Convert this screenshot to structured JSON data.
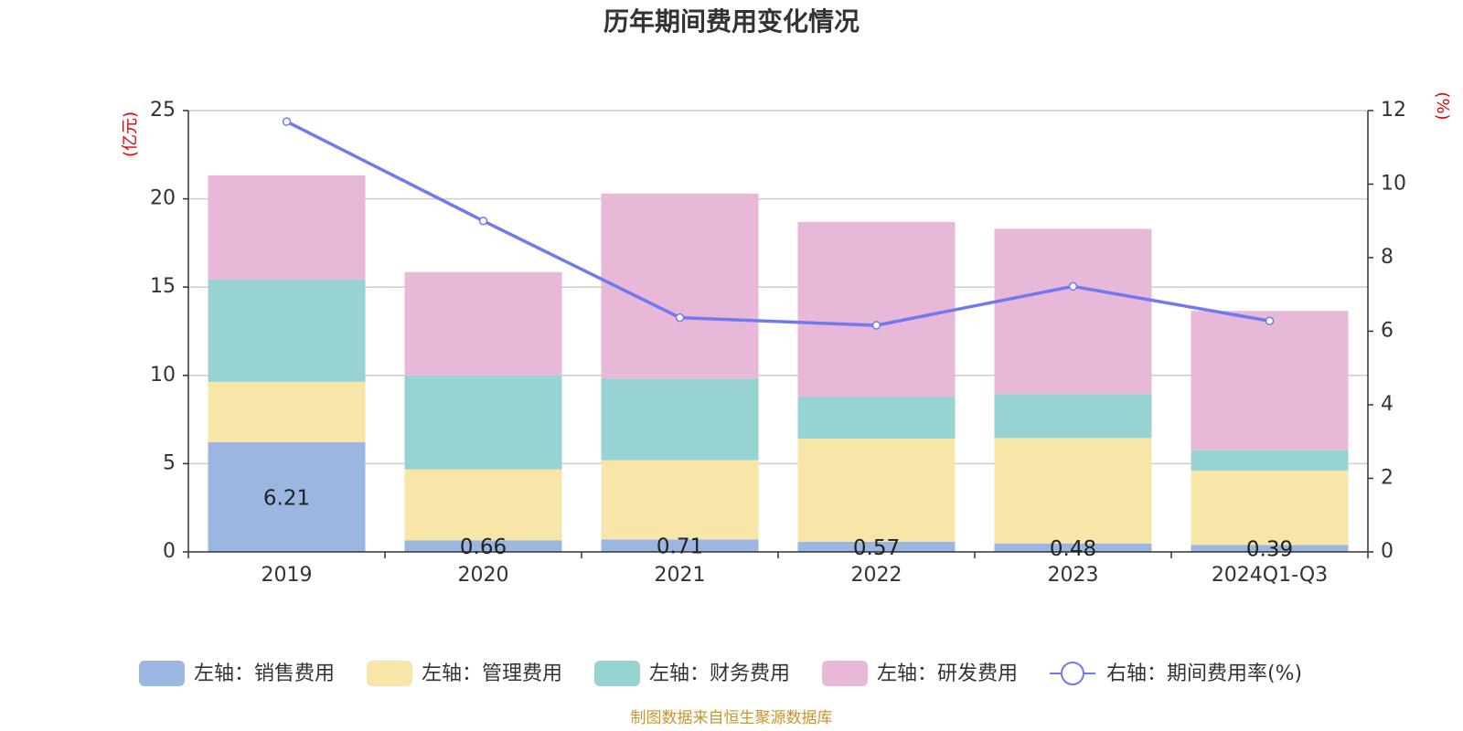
{
  "chart_data": {
    "type": "bar",
    "title": "历年期间费用变化情况",
    "categories": [
      "2019",
      "2020",
      "2021",
      "2022",
      "2023",
      "2024Q1-Q3"
    ],
    "y_left": {
      "unit": "(亿元)",
      "range": [
        0,
        25
      ],
      "ticks": [
        0,
        5,
        10,
        15,
        20,
        25
      ]
    },
    "y_right": {
      "unit": "(%)",
      "range": [
        0,
        12
      ],
      "ticks": [
        0,
        2,
        4,
        6,
        8,
        10,
        12
      ]
    },
    "series": [
      {
        "name": "左轴：销售费用",
        "type": "bar",
        "stack": "cost",
        "axis": "left",
        "color": "#9bb6e1",
        "values": [
          6.21,
          0.66,
          0.71,
          0.57,
          0.48,
          0.39
        ],
        "labels": [
          "6.21",
          "0.66",
          "0.71",
          "0.57",
          "0.48",
          "0.39"
        ]
      },
      {
        "name": "左轴：管理费用",
        "type": "bar",
        "stack": "cost",
        "axis": "left",
        "color": "#f8e6a8",
        "values": [
          3.42,
          4.02,
          4.49,
          5.84,
          5.97,
          4.22
        ]
      },
      {
        "name": "左轴：财务费用",
        "type": "bar",
        "stack": "cost",
        "axis": "left",
        "color": "#97d3d3",
        "values": [
          5.8,
          5.3,
          4.61,
          2.38,
          2.49,
          1.15
        ]
      },
      {
        "name": "左轴：研发费用",
        "type": "bar",
        "stack": "cost",
        "axis": "left",
        "color": "#e8b8d8",
        "values": [
          5.9,
          5.87,
          10.49,
          9.9,
          9.36,
          7.89
        ]
      },
      {
        "name": "右轴：期间费用率(%)",
        "type": "line",
        "axis": "right",
        "color": "#7279f0",
        "values": [
          11.7,
          9.0,
          6.37,
          6.16,
          7.22,
          6.28
        ]
      }
    ],
    "grid": true,
    "legend_position": "bottom"
  },
  "source_note": "制图数据来自恒生聚源数据库"
}
